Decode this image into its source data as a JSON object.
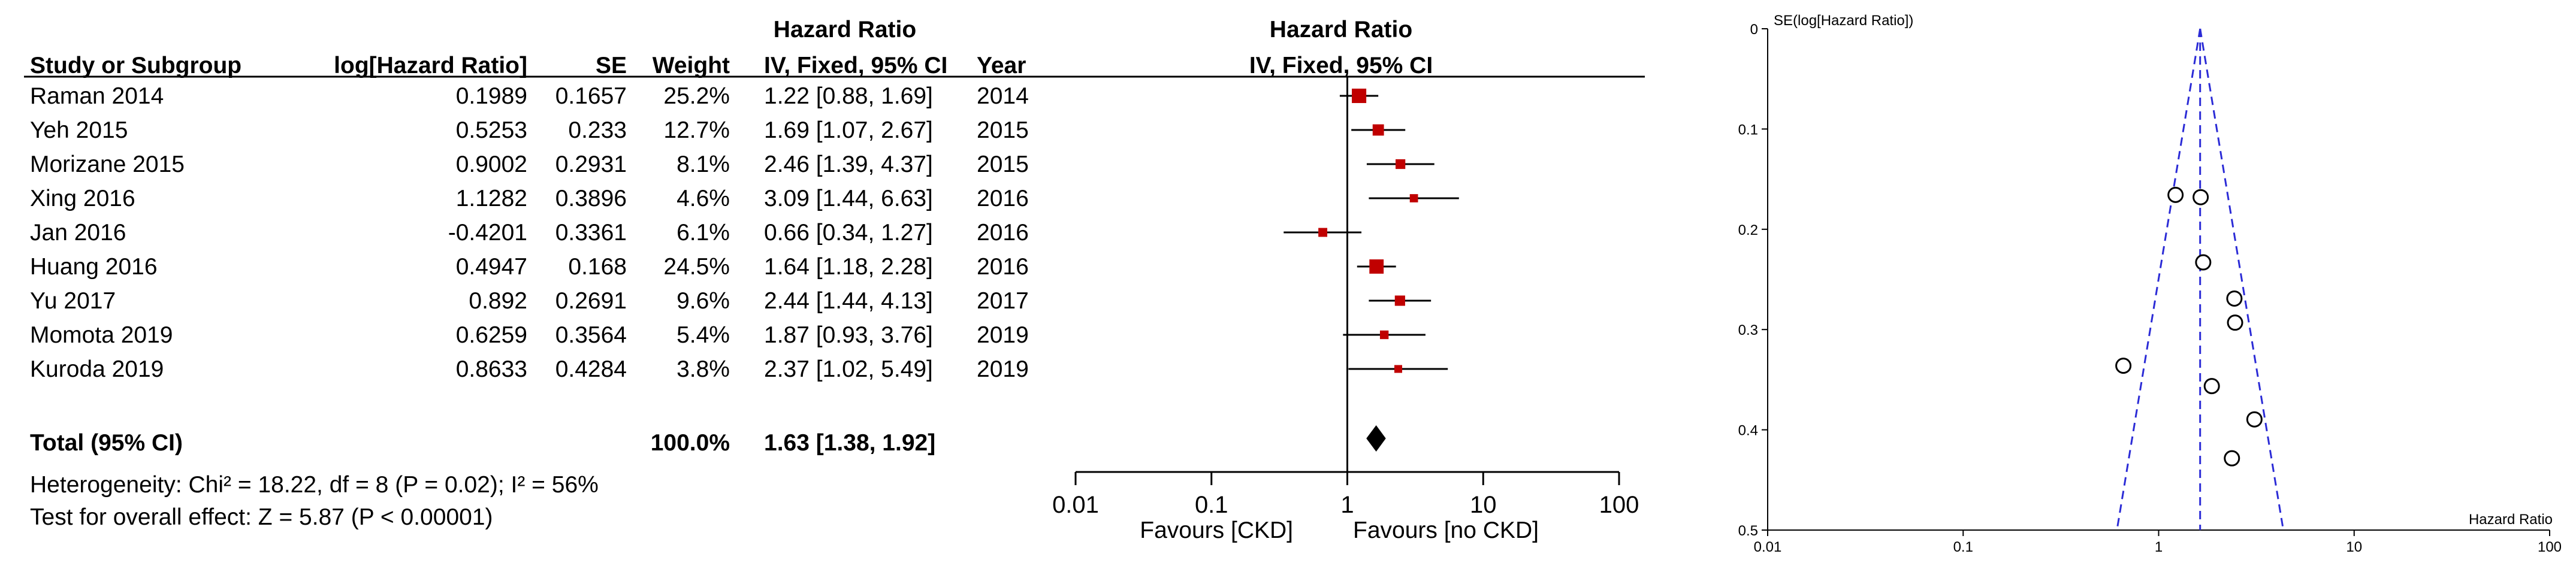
{
  "chart_data": [
    {
      "type": "forest",
      "headers": {
        "top_hr": "Hazard Ratio",
        "study": "Study or Subgroup",
        "loghr": "log[Hazard Ratio]",
        "se": "SE",
        "weight": "Weight",
        "hr": "IV, Fixed, 95% CI",
        "year": "Year",
        "plot_top": "Hazard Ratio",
        "plot_sub": "IV, Fixed, 95% CI"
      },
      "studies": [
        {
          "name": "Raman 2014",
          "loghr": "0.1989",
          "se": "0.1657",
          "weight": "25.2%",
          "ci": "1.22 [0.88, 1.69]",
          "year": "2014",
          "hr": 1.22,
          "lo": 0.88,
          "hi": 1.69,
          "w": 25.2
        },
        {
          "name": "Yeh 2015",
          "loghr": "0.5253",
          "se": "0.233",
          "weight": "12.7%",
          "ci": "1.69 [1.07, 2.67]",
          "year": "2015",
          "hr": 1.69,
          "lo": 1.07,
          "hi": 2.67,
          "w": 12.7
        },
        {
          "name": "Morizane 2015",
          "loghr": "0.9002",
          "se": "0.2931",
          "weight": "8.1%",
          "ci": "2.46 [1.39, 4.37]",
          "year": "2015",
          "hr": 2.46,
          "lo": 1.39,
          "hi": 4.37,
          "w": 8.1
        },
        {
          "name": "Xing 2016",
          "loghr": "1.1282",
          "se": "0.3896",
          "weight": "4.6%",
          "ci": "3.09 [1.44, 6.63]",
          "year": "2016",
          "hr": 3.09,
          "lo": 1.44,
          "hi": 6.63,
          "w": 4.6
        },
        {
          "name": "Jan 2016",
          "loghr": "-0.4201",
          "se": "0.3361",
          "weight": "6.1%",
          "ci": "0.66 [0.34, 1.27]",
          "year": "2016",
          "hr": 0.66,
          "lo": 0.34,
          "hi": 1.27,
          "w": 6.1
        },
        {
          "name": "Huang 2016",
          "loghr": "0.4947",
          "se": "0.168",
          "weight": "24.5%",
          "ci": "1.64 [1.18, 2.28]",
          "year": "2016",
          "hr": 1.64,
          "lo": 1.18,
          "hi": 2.28,
          "w": 24.5
        },
        {
          "name": "Yu 2017",
          "loghr": "0.892",
          "se": "0.2691",
          "weight": "9.6%",
          "ci": "2.44 [1.44, 4.13]",
          "year": "2017",
          "hr": 2.44,
          "lo": 1.44,
          "hi": 4.13,
          "w": 9.6
        },
        {
          "name": "Momota 2019",
          "loghr": "0.6259",
          "se": "0.3564",
          "weight": "5.4%",
          "ci": "1.87 [0.93, 3.76]",
          "year": "2019",
          "hr": 1.87,
          "lo": 0.93,
          "hi": 3.76,
          "w": 5.4
        },
        {
          "name": "Kuroda 2019",
          "loghr": "0.8633",
          "se": "0.4284",
          "weight": "3.8%",
          "ci": "2.37 [1.02, 5.49]",
          "year": "2019",
          "hr": 2.37,
          "lo": 1.02,
          "hi": 5.49,
          "w": 3.8
        }
      ],
      "total": {
        "label": "Total (95% CI)",
        "weight": "100.0%",
        "ci": "1.63 [1.38, 1.92]",
        "hr": 1.63,
        "lo": 1.38,
        "hi": 1.92
      },
      "heterogeneity": "Heterogeneity: Chi² = 18.22, df = 8 (P = 0.02); I² = 56%",
      "overall_effect": "Test for overall effect: Z = 5.87 (P < 0.00001)",
      "axis": {
        "scale": "log",
        "ticks": [
          0.01,
          0.1,
          1,
          10,
          100
        ],
        "tick_labels": [
          "0.01",
          "0.1",
          "1",
          "10",
          "100"
        ]
      },
      "favours_left": "Favours [CKD]",
      "favours_right": "Favours [no CKD]",
      "colors": {
        "marker": "#c00000",
        "line": "#000000",
        "diamond": "#000000"
      }
    },
    {
      "type": "funnel",
      "ylabel": "SE(log[Hazard Ratio])",
      "xlabel": "Hazard Ratio",
      "x_scale": "log",
      "xlim": [
        0.01,
        100
      ],
      "ylim": [
        0,
        0.5
      ],
      "x_ticks": [
        0.01,
        0.1,
        1,
        10,
        100
      ],
      "x_tick_labels": [
        "0.01",
        "0.1",
        "1",
        "10",
        "100"
      ],
      "y_ticks": [
        0,
        0.1,
        0.2,
        0.3,
        0.4,
        0.5
      ],
      "y_tick_labels": [
        "0",
        "0.1",
        "0.2",
        "0.3",
        "0.4",
        "0.5"
      ],
      "pooled_estimate": 1.63,
      "points": [
        {
          "hr": 1.22,
          "se": 0.1657
        },
        {
          "hr": 1.69,
          "se": 0.233
        },
        {
          "hr": 2.46,
          "se": 0.2931
        },
        {
          "hr": 3.09,
          "se": 0.3896
        },
        {
          "hr": 0.66,
          "se": 0.3361
        },
        {
          "hr": 1.64,
          "se": 0.168
        },
        {
          "hr": 2.44,
          "se": 0.2691
        },
        {
          "hr": 1.87,
          "se": 0.3564
        },
        {
          "hr": 2.37,
          "se": 0.4284
        }
      ],
      "colors": {
        "funnel": "#2b2bd6",
        "points": "#000000"
      }
    }
  ]
}
